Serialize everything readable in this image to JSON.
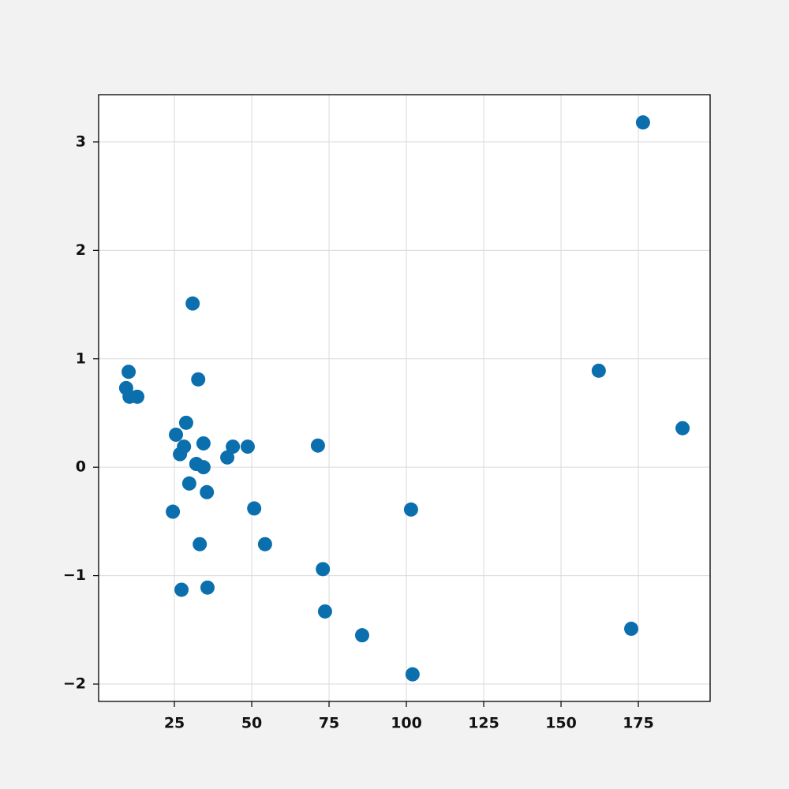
{
  "chart_data": {
    "type": "scatter",
    "color": "#0b6fae",
    "grid": true,
    "xlim": [
      0.5,
      198.2
    ],
    "ylim": [
      -2.16,
      3.436
    ],
    "xticks": [
      25,
      50,
      75,
      100,
      125,
      150,
      175
    ],
    "yticks": [
      {
        "value": -2,
        "label": "−2"
      },
      {
        "value": -1,
        "label": "−1"
      },
      0,
      1,
      2,
      3
    ],
    "x": [
      176.5,
      30.9,
      10.2,
      9.4,
      10.5,
      13.0,
      32.7,
      28.8,
      25.5,
      26.8,
      28.1,
      34.4,
      43.9,
      48.7,
      42.1,
      32.1,
      34.4,
      29.8,
      35.5,
      24.5,
      50.8,
      33.2,
      54.3,
      27.3,
      35.7,
      71.4,
      73.0,
      73.7,
      85.7,
      101.5,
      102.0,
      162.2,
      172.7,
      189.3
    ],
    "values": [
      3.18,
      1.51,
      0.88,
      0.73,
      0.65,
      0.65,
      0.81,
      0.41,
      0.3,
      0.12,
      0.19,
      0.22,
      0.19,
      0.19,
      0.09,
      0.03,
      0.0,
      -0.15,
      -0.23,
      -0.41,
      -0.38,
      -0.71,
      -0.71,
      -1.13,
      -1.11,
      0.2,
      -0.94,
      -1.33,
      -1.55,
      -0.39,
      -1.91,
      0.89,
      -1.49,
      0.36
    ]
  }
}
